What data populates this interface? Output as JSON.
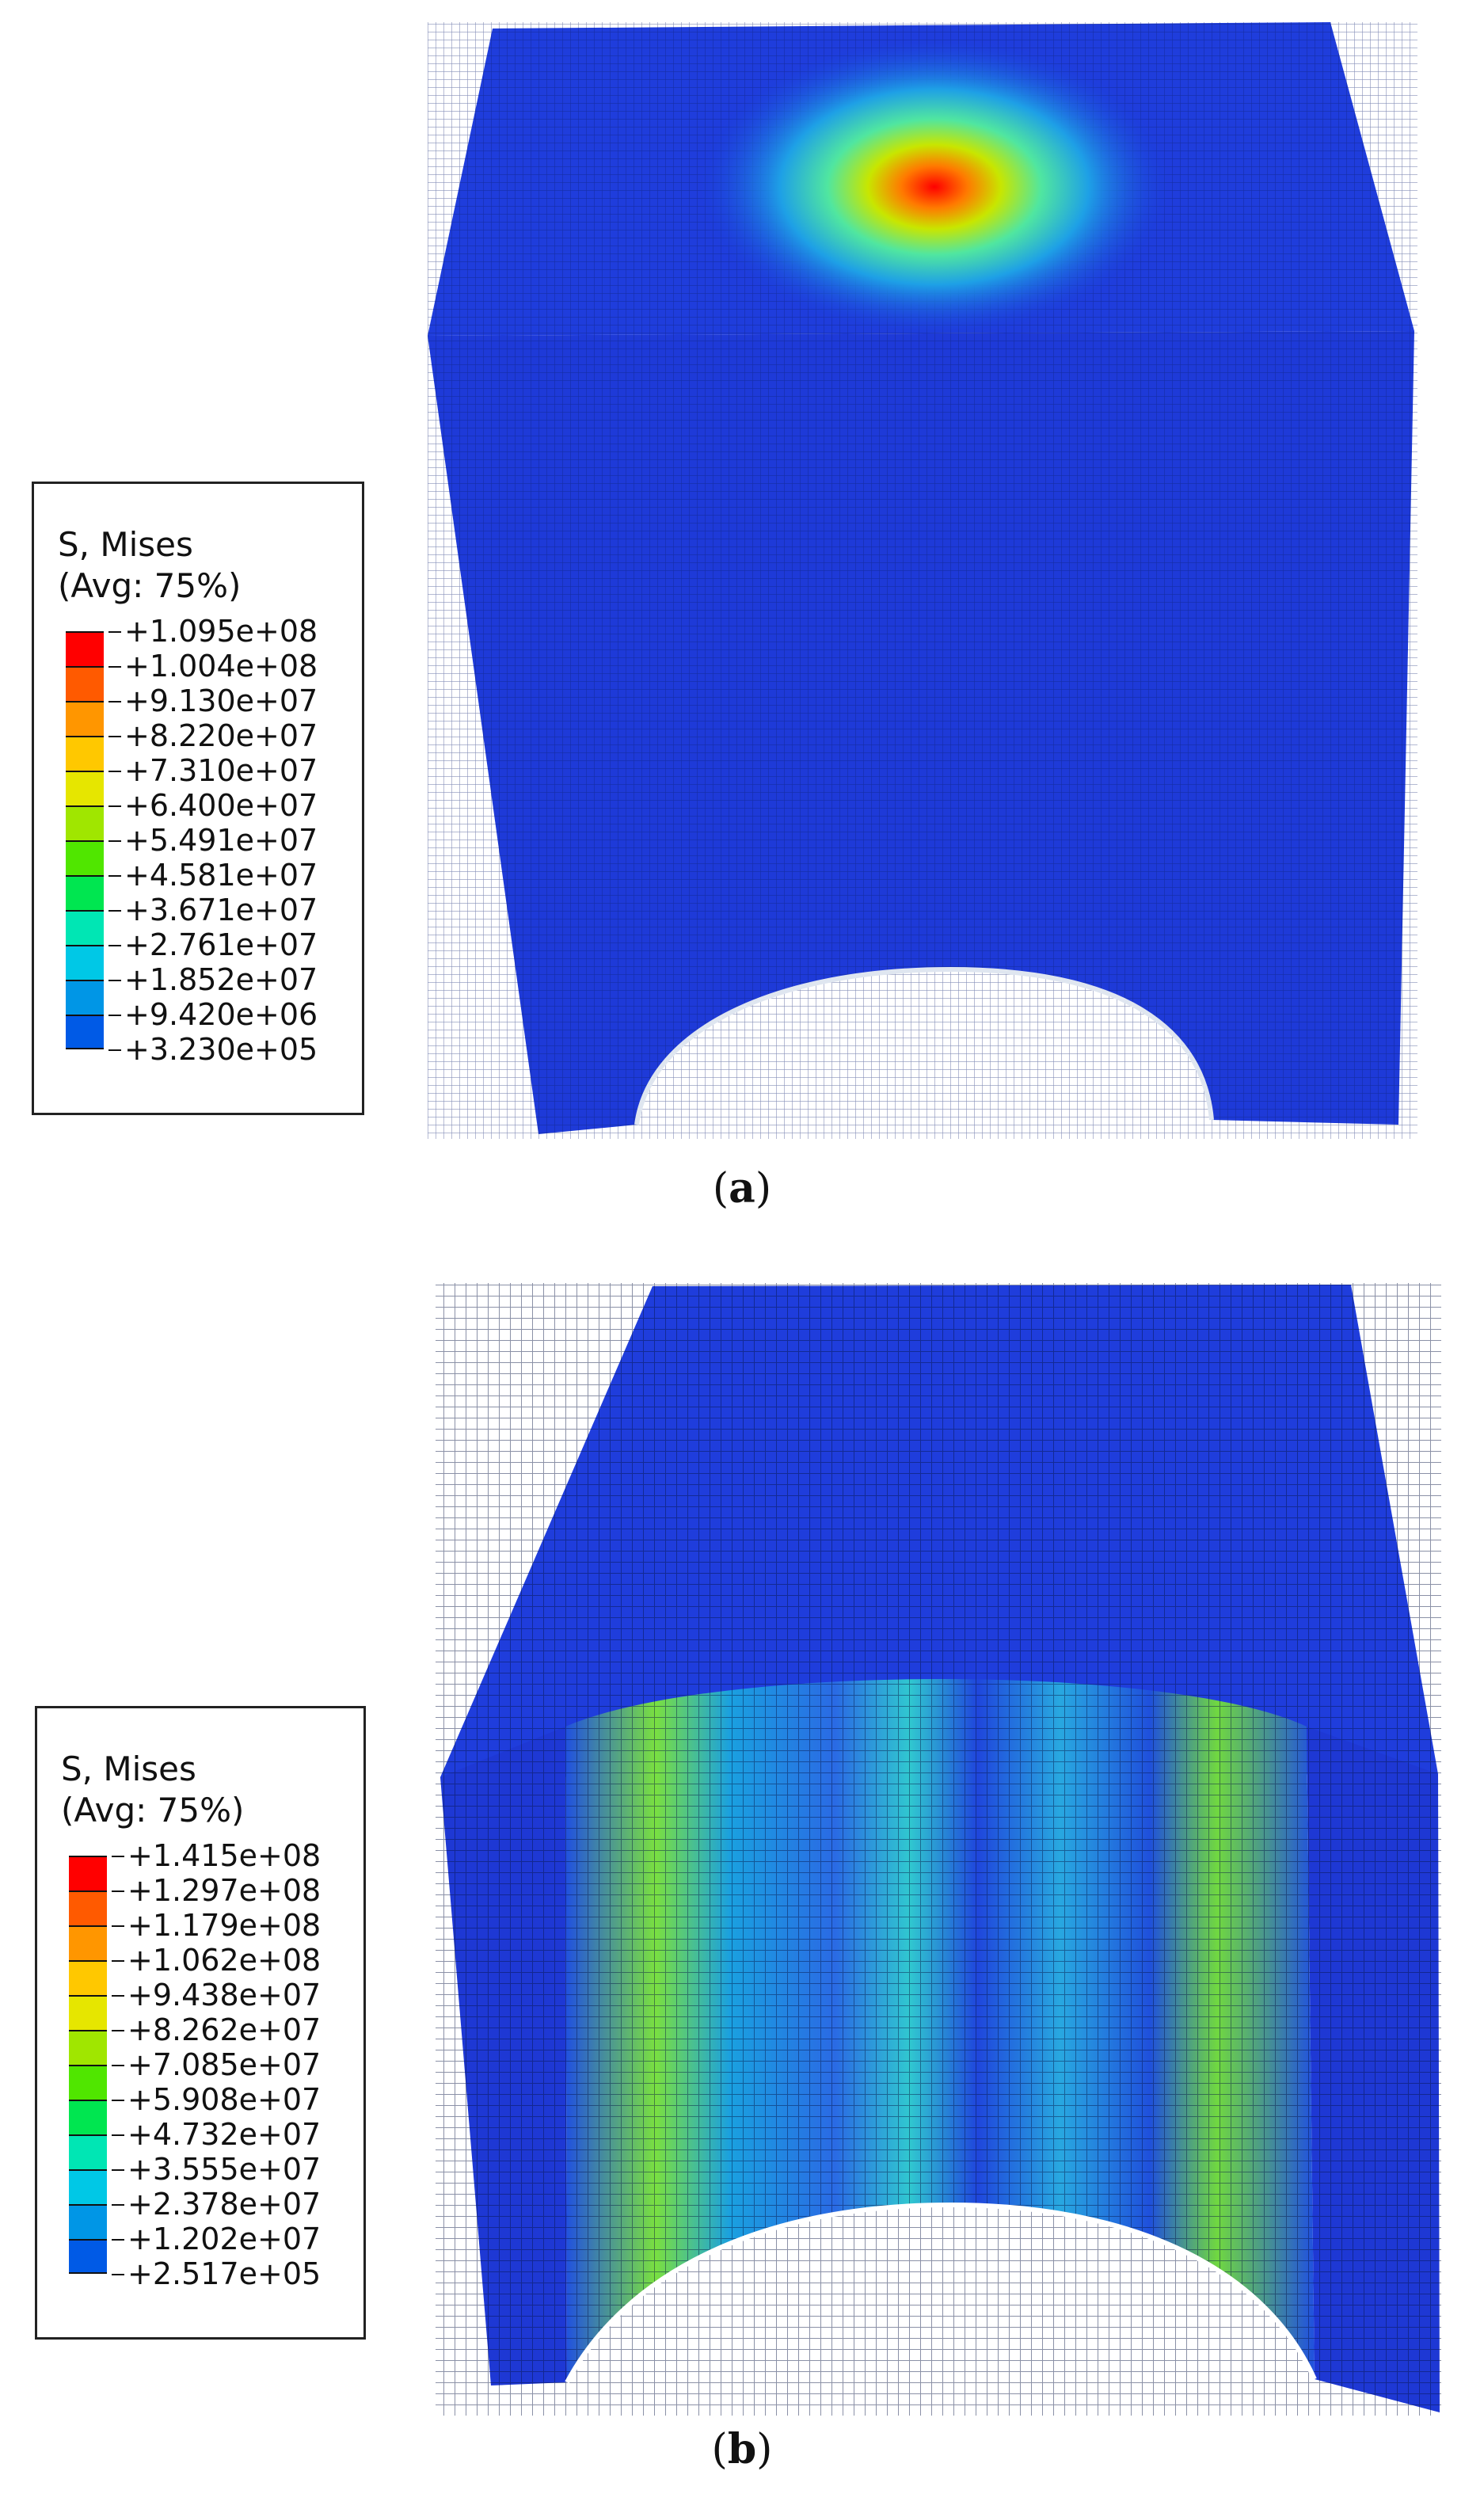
{
  "panels": [
    {
      "id": "a",
      "caption_open": "(",
      "caption_letter": "a",
      "caption_close": ")",
      "legend": {
        "title_line1": "S, Mises",
        "title_line2": "(Avg: 75%)",
        "values": [
          "+1.095e+08",
          "+1.004e+08",
          "+9.130e+07",
          "+8.220e+07",
          "+7.310e+07",
          "+6.400e+07",
          "+5.491e+07",
          "+4.581e+07",
          "+3.671e+07",
          "+2.761e+07",
          "+1.852e+07",
          "+9.420e+06",
          "+3.230e+05"
        ]
      }
    },
    {
      "id": "b",
      "caption_open": "(",
      "caption_letter": "b",
      "caption_close": ")",
      "legend": {
        "title_line1": "S, Mises",
        "title_line2": "(Avg: 75%)",
        "values": [
          "+1.415e+08",
          "+1.297e+08",
          "+1.179e+08",
          "+1.062e+08",
          "+9.438e+07",
          "+8.262e+07",
          "+7.085e+07",
          "+5.908e+07",
          "+4.732e+07",
          "+3.555e+07",
          "+2.378e+07",
          "+1.202e+07",
          "+2.517e+05"
        ]
      }
    }
  ],
  "colormap": [
    "#ff0000",
    "#ff5a00",
    "#ff9600",
    "#ffc800",
    "#e6e600",
    "#a0e600",
    "#50e600",
    "#00e650",
    "#00e6b4",
    "#00c8e6",
    "#0096e6",
    "#005ae6",
    "#0000e6"
  ]
}
